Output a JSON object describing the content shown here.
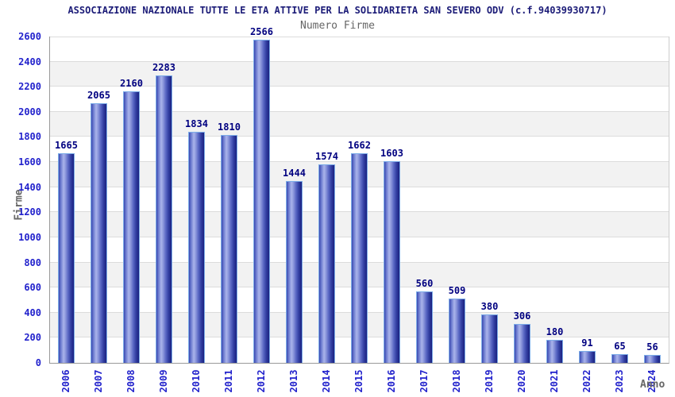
{
  "header": {
    "title": "ASSOCIAZIONE NAZIONALE TUTTE LE ETA ATTIVE PER LA SOLIDARIETA SAN SEVERO ODV (c.f.94039930717)",
    "subtitle": "Numero Firme"
  },
  "chart_data": {
    "type": "bar",
    "title": "Numero Firme",
    "categories": [
      "2006",
      "2007",
      "2008",
      "2009",
      "2010",
      "2011",
      "2012",
      "2013",
      "2014",
      "2015",
      "2016",
      "2017",
      "2018",
      "2019",
      "2020",
      "2021",
      "2022",
      "2023",
      "2024"
    ],
    "values": [
      1665,
      2065,
      2160,
      2283,
      1834,
      1810,
      2566,
      1444,
      1574,
      1662,
      1603,
      560,
      509,
      380,
      306,
      180,
      91,
      65,
      56
    ],
    "xlabel": "Anno",
    "ylabel": "Firme",
    "ylim": [
      0,
      2600
    ],
    "ytick_step": 200,
    "yticks": [
      0,
      200,
      400,
      600,
      800,
      1000,
      1200,
      1400,
      1600,
      1800,
      2000,
      2200,
      2400,
      2600
    ],
    "grid": "horizontal gridlines every 200 with alternating white and light-gray bands",
    "legend": "none",
    "bar_labels_shown": true,
    "colors": {
      "title": "#1c1c78",
      "subtitle": "#666666",
      "axis_tick_label": "#2222cc",
      "value_label": "#000080",
      "band_gray": "#f2f2f2",
      "gridline": "#dcdcdc",
      "bar_edge_outline": "#7dade8",
      "bar_dark": "#1a2180",
      "bar_light": "#aab4ea"
    }
  }
}
